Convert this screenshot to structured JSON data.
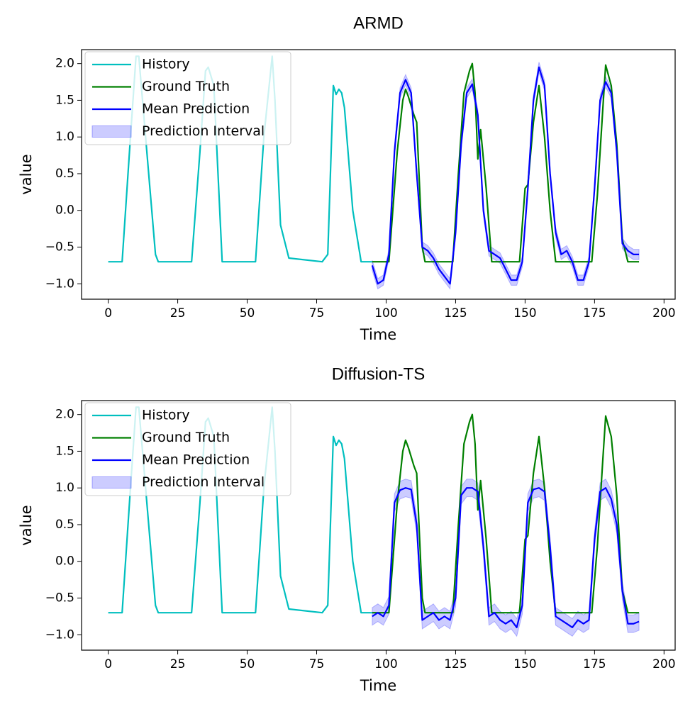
{
  "chart_data": [
    {
      "type": "line",
      "title": "ARMD",
      "xlabel": "Time",
      "ylabel": "value",
      "xlim": [
        -9.6,
        204
      ],
      "ylim": [
        -1.21,
        2.19
      ],
      "xticks": [
        0,
        25,
        50,
        75,
        100,
        125,
        150,
        175,
        200
      ],
      "yticks": [
        {
          "value": -1,
          "label": "−1.0"
        },
        {
          "value": -0.5,
          "label": "−0.5"
        },
        {
          "value": 0,
          "label": "0.0"
        },
        {
          "value": 0.5,
          "label": "0.5"
        },
        {
          "value": 1,
          "label": "1.0"
        },
        {
          "value": 1.5,
          "label": "1.5"
        },
        {
          "value": 2,
          "label": "2.0"
        }
      ],
      "legend": "upper left",
      "series": [
        {
          "name": "History",
          "color": "#00bfbf",
          "x": [
            0,
            5,
            8,
            10,
            11,
            13,
            15,
            17,
            18,
            30,
            33,
            35,
            36,
            38,
            41,
            53,
            56,
            59,
            60,
            62,
            65,
            77,
            79,
            81,
            82,
            83,
            84,
            85,
            88,
            91,
            95
          ],
          "values": [
            -0.7,
            -0.7,
            1.0,
            2.1,
            2.1,
            1.2,
            0.3,
            -0.6,
            -0.7,
            -0.7,
            0.8,
            1.9,
            1.95,
            1.7,
            -0.7,
            -0.7,
            1.0,
            2.1,
            1.5,
            -0.2,
            -0.65,
            -0.7,
            -0.6,
            1.7,
            1.58,
            1.65,
            1.6,
            1.4,
            0.0,
            -0.7,
            -0.7
          ]
        },
        {
          "name": "Ground Truth",
          "color": "#008000",
          "x": [
            95,
            101,
            104,
            106,
            107,
            108,
            110,
            111,
            113,
            114,
            124,
            126,
            128,
            130,
            131,
            132,
            133,
            134,
            136,
            138,
            148,
            150,
            151,
            153,
            155,
            157,
            159,
            161,
            174,
            176,
            178,
            179,
            181,
            183,
            185,
            187,
            191
          ],
          "values": [
            -0.7,
            -0.7,
            0.8,
            1.5,
            1.65,
            1.55,
            1.3,
            1.2,
            -0.5,
            -0.7,
            -0.7,
            0.5,
            1.6,
            1.9,
            2.0,
            1.6,
            0.7,
            1.1,
            0.3,
            -0.7,
            -0.7,
            0.3,
            0.35,
            1.2,
            1.7,
            1.0,
            0.0,
            -0.7,
            -0.7,
            0.2,
            1.4,
            1.98,
            1.7,
            0.9,
            -0.4,
            -0.7,
            -0.7
          ]
        },
        {
          "name": "Mean Prediction",
          "color": "#0000ff",
          "x": [
            95,
            97,
            99,
            101,
            103,
            105,
            107,
            109,
            111,
            113,
            115,
            117,
            119,
            121,
            123,
            125,
            127,
            129,
            131,
            133,
            135,
            137,
            139,
            141,
            143,
            145,
            147,
            149,
            151,
            153,
            155,
            157,
            159,
            161,
            163,
            165,
            167,
            169,
            171,
            173,
            175,
            177,
            179,
            181,
            183,
            185,
            187,
            189,
            191
          ],
          "values": [
            -0.75,
            -1.0,
            -0.95,
            -0.6,
            0.8,
            1.6,
            1.78,
            1.6,
            0.5,
            -0.5,
            -0.55,
            -0.65,
            -0.8,
            -0.9,
            -1.0,
            -0.3,
            0.9,
            1.6,
            1.72,
            1.3,
            0.0,
            -0.55,
            -0.6,
            -0.65,
            -0.8,
            -0.95,
            -0.95,
            -0.7,
            0.3,
            1.5,
            1.95,
            1.7,
            0.5,
            -0.3,
            -0.6,
            -0.55,
            -0.7,
            -0.95,
            -0.95,
            -0.7,
            0.3,
            1.5,
            1.75,
            1.6,
            0.8,
            -0.45,
            -0.55,
            -0.6,
            -0.6
          ]
        },
        {
          "name": "Prediction Interval",
          "color": "#0000ff",
          "x": [
            95,
            97,
            99,
            101,
            103,
            105,
            107,
            109,
            111,
            113,
            115,
            117,
            119,
            121,
            123,
            125,
            127,
            129,
            131,
            133,
            135,
            137,
            139,
            141,
            143,
            145,
            147,
            149,
            151,
            153,
            155,
            157,
            159,
            161,
            163,
            165,
            167,
            169,
            171,
            173,
            175,
            177,
            179,
            181,
            183,
            185,
            187,
            189,
            191
          ],
          "lower": [
            -0.82,
            -1.07,
            -1.02,
            -0.67,
            0.73,
            1.53,
            1.71,
            1.53,
            0.43,
            -0.57,
            -0.62,
            -0.72,
            -0.87,
            -0.97,
            -1.07,
            -0.37,
            0.83,
            1.53,
            1.65,
            1.23,
            -0.07,
            -0.62,
            -0.67,
            -0.72,
            -0.87,
            -1.02,
            -1.02,
            -0.77,
            0.23,
            1.43,
            1.88,
            1.63,
            0.43,
            -0.37,
            -0.67,
            -0.62,
            -0.77,
            -1.02,
            -1.02,
            -0.77,
            0.23,
            1.43,
            1.68,
            1.53,
            0.73,
            -0.52,
            -0.62,
            -0.67,
            -0.67
          ],
          "upper": [
            -0.68,
            -0.93,
            -0.88,
            -0.53,
            0.87,
            1.67,
            1.85,
            1.67,
            0.57,
            -0.43,
            -0.48,
            -0.58,
            -0.73,
            -0.83,
            -0.93,
            -0.23,
            0.97,
            1.67,
            1.79,
            1.37,
            0.07,
            -0.48,
            -0.53,
            -0.58,
            -0.73,
            -0.88,
            -0.88,
            -0.63,
            0.37,
            1.57,
            2.02,
            1.77,
            0.57,
            -0.23,
            -0.53,
            -0.48,
            -0.63,
            -0.88,
            -0.88,
            -0.63,
            0.37,
            1.57,
            1.82,
            1.67,
            0.87,
            -0.38,
            -0.48,
            -0.53,
            -0.53
          ]
        }
      ]
    },
    {
      "type": "line",
      "title": "Diffusion-TS",
      "xlabel": "Time",
      "ylabel": "value",
      "xlim": [
        -9.6,
        204
      ],
      "ylim": [
        -1.21,
        2.19
      ],
      "xticks": [
        0,
        25,
        50,
        75,
        100,
        125,
        150,
        175,
        200
      ],
      "yticks": [
        {
          "value": -1,
          "label": "−1.0"
        },
        {
          "value": -0.5,
          "label": "−0.5"
        },
        {
          "value": 0,
          "label": "0.0"
        },
        {
          "value": 0.5,
          "label": "0.5"
        },
        {
          "value": 1,
          "label": "1.0"
        },
        {
          "value": 1.5,
          "label": "1.5"
        },
        {
          "value": 2,
          "label": "2.0"
        }
      ],
      "legend": "upper left",
      "series": [
        {
          "name": "History",
          "color": "#00bfbf",
          "x": [
            0,
            5,
            8,
            10,
            11,
            13,
            15,
            17,
            18,
            30,
            33,
            35,
            36,
            38,
            41,
            53,
            56,
            59,
            60,
            62,
            65,
            77,
            79,
            81,
            82,
            83,
            84,
            85,
            88,
            91,
            95
          ],
          "values": [
            -0.7,
            -0.7,
            1.0,
            2.1,
            2.1,
            1.2,
            0.3,
            -0.6,
            -0.7,
            -0.7,
            0.8,
            1.9,
            1.95,
            1.7,
            -0.7,
            -0.7,
            1.0,
            2.1,
            1.5,
            -0.2,
            -0.65,
            -0.7,
            -0.6,
            1.7,
            1.58,
            1.65,
            1.6,
            1.4,
            0.0,
            -0.7,
            -0.7
          ]
        },
        {
          "name": "Ground Truth",
          "color": "#008000",
          "x": [
            95,
            101,
            104,
            106,
            107,
            108,
            110,
            111,
            113,
            114,
            124,
            126,
            128,
            130,
            131,
            132,
            133,
            134,
            136,
            138,
            148,
            150,
            151,
            153,
            155,
            157,
            159,
            161,
            174,
            176,
            178,
            179,
            181,
            183,
            185,
            187,
            191
          ],
          "values": [
            -0.7,
            -0.7,
            0.8,
            1.5,
            1.65,
            1.55,
            1.3,
            1.2,
            -0.5,
            -0.7,
            -0.7,
            0.5,
            1.6,
            1.9,
            2.0,
            1.6,
            0.7,
            1.1,
            0.3,
            -0.7,
            -0.7,
            0.3,
            0.35,
            1.2,
            1.7,
            1.0,
            0.0,
            -0.7,
            -0.7,
            0.2,
            1.4,
            1.98,
            1.7,
            0.9,
            -0.4,
            -0.7,
            -0.7
          ]
        },
        {
          "name": "Mean Prediction",
          "color": "#0000ff",
          "x": [
            95,
            97,
            99,
            101,
            103,
            105,
            107,
            109,
            111,
            113,
            115,
            117,
            119,
            121,
            123,
            125,
            127,
            129,
            131,
            133,
            135,
            137,
            139,
            141,
            143,
            145,
            147,
            149,
            151,
            153,
            155,
            157,
            159,
            161,
            163,
            165,
            167,
            169,
            171,
            173,
            175,
            177,
            179,
            181,
            183,
            185,
            187,
            189,
            191
          ],
          "values": [
            -0.75,
            -0.7,
            -0.75,
            -0.6,
            0.8,
            0.97,
            1.0,
            0.98,
            0.5,
            -0.8,
            -0.75,
            -0.7,
            -0.8,
            -0.75,
            -0.8,
            -0.5,
            0.9,
            1.0,
            1.0,
            0.95,
            0.2,
            -0.75,
            -0.7,
            -0.8,
            -0.85,
            -0.8,
            -0.9,
            -0.6,
            0.8,
            0.98,
            1.0,
            0.95,
            0.2,
            -0.75,
            -0.8,
            -0.85,
            -0.9,
            -0.8,
            -0.85,
            -0.8,
            0.3,
            0.95,
            1.0,
            0.85,
            0.5,
            -0.4,
            -0.85,
            -0.85,
            -0.82
          ]
        },
        {
          "name": "Prediction Interval",
          "color": "#0000ff",
          "x": [
            95,
            97,
            99,
            101,
            103,
            105,
            107,
            109,
            111,
            113,
            115,
            117,
            119,
            121,
            123,
            125,
            127,
            129,
            131,
            133,
            135,
            137,
            139,
            141,
            143,
            145,
            147,
            149,
            151,
            153,
            155,
            157,
            159,
            161,
            163,
            165,
            167,
            169,
            171,
            173,
            175,
            177,
            179,
            181,
            183,
            185,
            187,
            189,
            191
          ],
          "lower": [
            -0.87,
            -0.82,
            -0.87,
            -0.72,
            0.68,
            0.85,
            0.88,
            0.86,
            0.38,
            -0.92,
            -0.87,
            -0.82,
            -0.92,
            -0.87,
            -0.92,
            -0.62,
            0.78,
            0.88,
            0.88,
            0.83,
            0.08,
            -0.87,
            -0.82,
            -0.92,
            -0.97,
            -0.92,
            -1.02,
            -0.72,
            0.68,
            0.86,
            0.88,
            0.83,
            0.08,
            -0.87,
            -0.92,
            -0.97,
            -1.02,
            -0.92,
            -0.97,
            -0.92,
            0.18,
            0.83,
            0.88,
            0.73,
            0.38,
            -0.52,
            -0.97,
            -0.97,
            -0.94
          ],
          "upper": [
            -0.63,
            -0.58,
            -0.63,
            -0.48,
            0.92,
            1.09,
            1.12,
            1.1,
            0.62,
            -0.68,
            -0.63,
            -0.58,
            -0.68,
            -0.63,
            -0.68,
            -0.38,
            1.02,
            1.12,
            1.12,
            1.07,
            0.32,
            -0.63,
            -0.58,
            -0.68,
            -0.73,
            -0.68,
            -0.78,
            -0.48,
            0.92,
            1.1,
            1.12,
            1.07,
            0.32,
            -0.63,
            -0.68,
            -0.73,
            -0.78,
            -0.68,
            -0.73,
            -0.68,
            0.42,
            1.07,
            1.12,
            0.97,
            0.62,
            -0.28,
            -0.73,
            -0.73,
            -0.7
          ]
        }
      ]
    }
  ]
}
